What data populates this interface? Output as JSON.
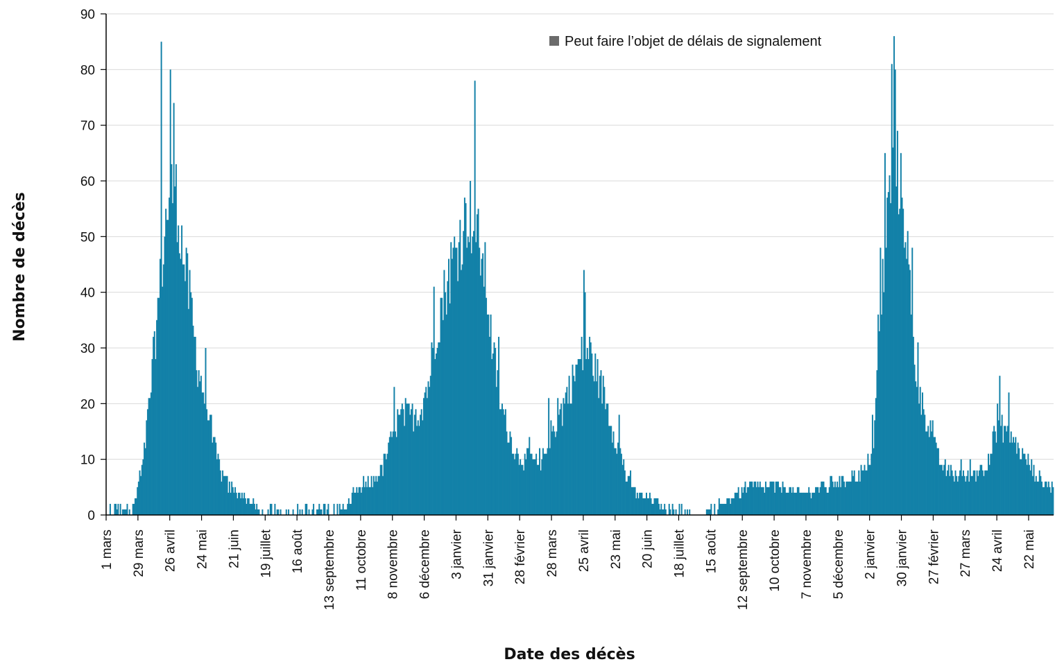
{
  "chart_data": {
    "type": "bar",
    "title": "",
    "xlabel": "Date des décès",
    "ylabel": "Nombre de décès",
    "ylim": [
      0,
      90
    ],
    "yticks": [
      0,
      10,
      20,
      30,
      40,
      50,
      60,
      70,
      80,
      90
    ],
    "grid": "horizontal",
    "legend": {
      "position": "top-right",
      "entries": [
        "Peut faire l’objet de délais de signalement"
      ]
    },
    "colors": {
      "bars": "#1381a8",
      "legend_marker": "#6b6b6b",
      "grid": "#d9d9d9",
      "axis": "#000000"
    },
    "x_start": "2020-03-01",
    "x_end": "2022-06-12",
    "x_tick_labels": [
      {
        "date": "2020-03-01",
        "label": "1 mars"
      },
      {
        "date": "2020-03-29",
        "label": "29 mars"
      },
      {
        "date": "2020-04-26",
        "label": "26 avril"
      },
      {
        "date": "2020-05-24",
        "label": "24 mai"
      },
      {
        "date": "2020-06-21",
        "label": "21 juin"
      },
      {
        "date": "2020-07-19",
        "label": "19 juillet"
      },
      {
        "date": "2020-08-16",
        "label": "16 août"
      },
      {
        "date": "2020-09-13",
        "label": "13 septembre"
      },
      {
        "date": "2020-10-11",
        "label": "11 octobre"
      },
      {
        "date": "2020-11-08",
        "label": "8 novembre"
      },
      {
        "date": "2020-12-06",
        "label": "6 décembre"
      },
      {
        "date": "2021-01-03",
        "label": "3 janvier"
      },
      {
        "date": "2021-01-31",
        "label": "31 janvier"
      },
      {
        "date": "2021-02-28",
        "label": "28 février"
      },
      {
        "date": "2021-03-28",
        "label": "28 mars"
      },
      {
        "date": "2021-04-25",
        "label": "25 avril"
      },
      {
        "date": "2021-05-23",
        "label": "23 mai"
      },
      {
        "date": "2021-06-20",
        "label": "20 juin"
      },
      {
        "date": "2021-07-18",
        "label": "18 juillet"
      },
      {
        "date": "2021-08-15",
        "label": "15 août"
      },
      {
        "date": "2021-09-12",
        "label": "12 septembre"
      },
      {
        "date": "2021-10-10",
        "label": "10 octobre"
      },
      {
        "date": "2021-11-07",
        "label": "7 novembre"
      },
      {
        "date": "2021-12-05",
        "label": "5 décembre"
      },
      {
        "date": "2022-01-02",
        "label": "2 janvier"
      },
      {
        "date": "2022-01-30",
        "label": "30 janvier"
      },
      {
        "date": "2022-02-27",
        "label": "27 février"
      },
      {
        "date": "2022-03-27",
        "label": "27 mars"
      },
      {
        "date": "2022-04-24",
        "label": "24 avril"
      },
      {
        "date": "2022-05-22",
        "label": "22 mai"
      }
    ],
    "series_weekly_levels": {
      "name": "Nombre de décès",
      "week_start_dates": [
        "2020-03-01",
        "2020-03-08",
        "2020-03-15",
        "2020-03-22",
        "2020-03-29",
        "2020-04-05",
        "2020-04-12",
        "2020-04-19",
        "2020-04-26",
        "2020-05-03",
        "2020-05-10",
        "2020-05-17",
        "2020-05-24",
        "2020-05-31",
        "2020-06-07",
        "2020-06-14",
        "2020-06-21",
        "2020-06-28",
        "2020-07-05",
        "2020-07-12",
        "2020-07-19",
        "2020-07-26",
        "2020-08-02",
        "2020-08-09",
        "2020-08-16",
        "2020-08-23",
        "2020-08-30",
        "2020-09-06",
        "2020-09-13",
        "2020-09-20",
        "2020-09-27",
        "2020-10-04",
        "2020-10-11",
        "2020-10-18",
        "2020-10-25",
        "2020-11-01",
        "2020-11-08",
        "2020-11-15",
        "2020-11-22",
        "2020-11-29",
        "2020-12-06",
        "2020-12-13",
        "2020-12-20",
        "2020-12-27",
        "2021-01-03",
        "2021-01-10",
        "2021-01-17",
        "2021-01-24",
        "2021-01-31",
        "2021-02-07",
        "2021-02-14",
        "2021-02-21",
        "2021-02-28",
        "2021-03-07",
        "2021-03-14",
        "2021-03-21",
        "2021-03-28",
        "2021-04-04",
        "2021-04-11",
        "2021-04-18",
        "2021-04-25",
        "2021-05-02",
        "2021-05-09",
        "2021-05-16",
        "2021-05-23",
        "2021-05-30",
        "2021-06-06",
        "2021-06-13",
        "2021-06-20",
        "2021-06-27",
        "2021-07-04",
        "2021-07-11",
        "2021-07-18",
        "2021-07-25",
        "2021-08-01",
        "2021-08-08",
        "2021-08-15",
        "2021-08-22",
        "2021-08-29",
        "2021-09-05",
        "2021-09-12",
        "2021-09-19",
        "2021-09-26",
        "2021-10-03",
        "2021-10-10",
        "2021-10-17",
        "2021-10-24",
        "2021-10-31",
        "2021-11-07",
        "2021-11-14",
        "2021-11-21",
        "2021-11-28",
        "2021-12-05",
        "2021-12-12",
        "2021-12-19",
        "2021-12-26",
        "2022-01-02",
        "2022-01-09",
        "2022-01-16",
        "2022-01-23",
        "2022-01-30",
        "2022-02-06",
        "2022-02-13",
        "2022-02-20",
        "2022-02-27",
        "2022-03-06",
        "2022-03-13",
        "2022-03-20",
        "2022-03-27",
        "2022-04-03",
        "2022-04-10",
        "2022-04-17",
        "2022-04-24",
        "2022-05-01",
        "2022-05-08",
        "2022-05-15",
        "2022-05-22",
        "2022-05-29",
        "2022-06-05"
      ],
      "values": [
        0,
        0,
        0,
        2,
        8,
        22,
        38,
        54,
        60,
        48,
        38,
        26,
        20,
        12,
        7,
        5,
        4,
        3,
        2,
        1,
        1,
        1,
        1,
        1,
        1,
        1,
        1,
        1,
        1,
        1,
        2,
        4,
        5,
        6,
        8,
        12,
        17,
        18,
        18,
        19,
        24,
        34,
        40,
        46,
        50,
        55,
        50,
        44,
        30,
        20,
        15,
        11,
        10,
        10,
        8,
        14,
        16,
        20,
        24,
        28,
        30,
        26,
        22,
        16,
        12,
        6,
        4,
        3,
        3,
        2,
        1,
        1,
        1,
        1,
        1,
        1,
        1,
        2,
        3,
        4,
        5,
        5,
        5,
        5,
        5,
        5,
        4,
        4,
        4,
        5,
        5,
        6,
        6,
        7,
        7,
        8,
        14,
        40,
        60,
        62,
        52,
        28,
        20,
        16,
        10,
        8,
        7,
        7,
        7,
        8,
        9,
        13,
        16,
        15,
        12,
        10,
        8,
        6,
        5
      ],
      "notable_peaks": [
        {
          "date": "2020-04-18",
          "value": 85
        },
        {
          "date": "2020-04-29",
          "value": 74
        },
        {
          "date": "2021-01-19",
          "value": 78
        },
        {
          "date": "2021-04-25",
          "value": 44
        },
        {
          "date": "2022-01-21",
          "value": 81
        },
        {
          "date": "2022-04-26",
          "value": 25
        }
      ]
    }
  }
}
